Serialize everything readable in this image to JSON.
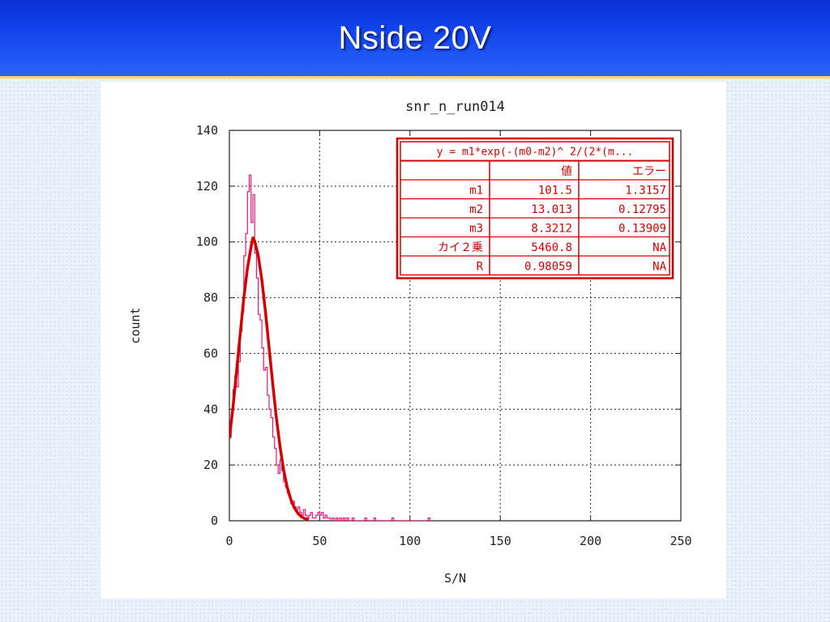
{
  "slide": {
    "title": "Nside 20V"
  },
  "chart_data": {
    "type": "line",
    "title": "snr_n_run014",
    "xlabel": "S/N",
    "ylabel": "count",
    "xlim": [
      0,
      250
    ],
    "ylim": [
      0,
      140
    ],
    "xticks": [
      "0",
      "50",
      "100",
      "150",
      "200",
      "250"
    ],
    "yticks": [
      "0",
      "20",
      "40",
      "60",
      "80",
      "100",
      "120",
      "140"
    ],
    "grid": true,
    "series": [
      {
        "style": "step",
        "color": "#e8167d",
        "x": [
          0,
          1,
          2,
          3,
          4,
          5,
          6,
          7,
          8,
          9,
          10,
          11,
          12,
          13,
          14,
          15,
          16,
          17,
          18,
          19,
          20,
          21,
          22,
          23,
          24,
          25,
          26,
          27,
          28,
          29,
          30,
          31,
          32,
          33,
          34,
          35,
          36,
          37,
          38,
          39,
          40,
          41,
          42,
          43,
          44,
          45,
          46,
          47,
          48,
          49,
          50,
          51,
          52,
          53,
          54,
          55,
          56,
          57,
          58,
          59,
          60,
          61,
          62,
          63,
          64,
          65,
          66,
          67,
          68,
          69,
          70,
          75,
          76,
          80,
          81,
          90,
          91,
          110,
          111
        ],
        "values": [
          30,
          38,
          47,
          52,
          48,
          57,
          68,
          75,
          95,
          103,
          118,
          124,
          107,
          117,
          96,
          87,
          74,
          72,
          62,
          54,
          55,
          45,
          40,
          37,
          30,
          26,
          20,
          17,
          22,
          18,
          14,
          12,
          10,
          9,
          6,
          7,
          5,
          4,
          5,
          3,
          2,
          4,
          2,
          1,
          2,
          3,
          1,
          1,
          2,
          3,
          2,
          3,
          1,
          2,
          1,
          1,
          0,
          1,
          0,
          1,
          0,
          1,
          0,
          1,
          0,
          1,
          0,
          0,
          1,
          0,
          0,
          1,
          0,
          1,
          0,
          1,
          0,
          1,
          0
        ]
      },
      {
        "style": "fit",
        "color": "#d40000",
        "x": [
          0,
          2,
          4,
          6,
          8,
          10,
          12,
          13,
          14,
          16,
          18,
          20,
          22,
          24,
          26,
          28,
          30,
          32,
          34,
          36,
          38,
          40,
          42,
          44
        ],
        "values": [
          29.5,
          40.9,
          53.8,
          67.1,
          79.9,
          90.6,
          98.1,
          101.5,
          100.3,
          95.1,
          86.3,
          74.8,
          62.0,
          49.1,
          37.1,
          26.8,
          18.4,
          12.1,
          7.6,
          4.6,
          2.6,
          1.4,
          0.7,
          0.4
        ]
      }
    ],
    "fit_table": {
      "formula": "y = m1*exp(-(m0-m2)^ 2/(2*(m...",
      "headers": [
        "",
        "値",
        "エラー"
      ],
      "rows": [
        [
          "m1",
          "101.5",
          "1.3157"
        ],
        [
          "m2",
          "13.013",
          "0.12795"
        ],
        [
          "m3",
          "8.3212",
          "0.13909"
        ],
        [
          "カイ２乗",
          "5460.8",
          "NA"
        ],
        [
          "R",
          "0.98059",
          "NA"
        ]
      ]
    }
  }
}
